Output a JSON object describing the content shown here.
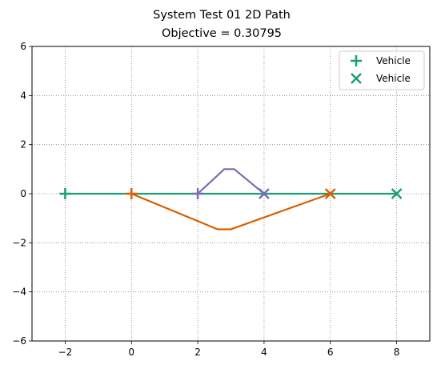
{
  "chart_data": {
    "type": "line",
    "title": "System Test 01 2D Path",
    "subtitle": "Objective = 0.30795",
    "xlabel": "",
    "ylabel": "",
    "xlim": [
      -3,
      9
    ],
    "ylim": [
      -6,
      6
    ],
    "xticks": [
      -2,
      0,
      2,
      4,
      6,
      8
    ],
    "yticks": [
      -6,
      -4,
      -2,
      0,
      2,
      4,
      6
    ],
    "grid": true,
    "legend_position": "top-right",
    "legend": [
      {
        "label": "Vehicle",
        "marker": "plus",
        "color": "#1b9e77"
      },
      {
        "label": "Vehicle",
        "marker": "x",
        "color": "#1b9e77"
      }
    ],
    "series": [
      {
        "color": "#1b9e77",
        "x": [
          -2,
          8
        ],
        "y": [
          0,
          0
        ],
        "start_marker": "plus",
        "end_marker": "x"
      },
      {
        "color": "#d95f02",
        "x": [
          0,
          2.6,
          3.0,
          6
        ],
        "y": [
          0,
          -1.45,
          -1.45,
          0
        ],
        "start_marker": "plus",
        "end_marker": "x"
      },
      {
        "color": "#7570b3",
        "x": [
          2,
          2.8,
          3.1,
          4
        ],
        "y": [
          0,
          1.0,
          1.0,
          0
        ],
        "start_marker": "plus",
        "end_marker": "x"
      }
    ]
  }
}
